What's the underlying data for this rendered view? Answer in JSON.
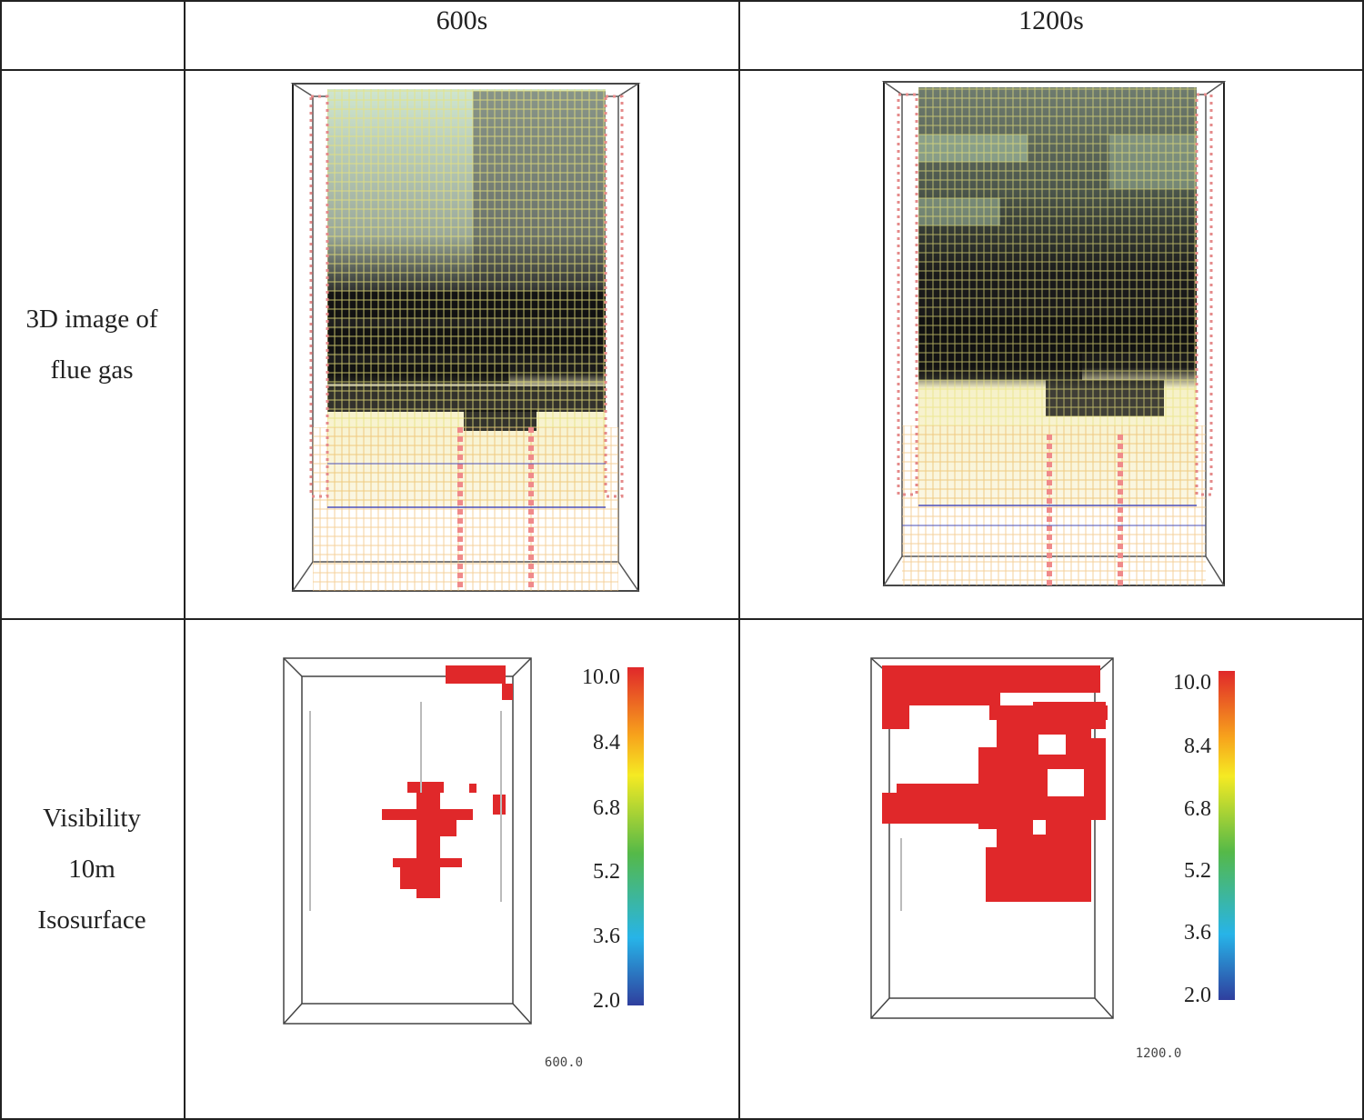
{
  "headers": {
    "empty": "",
    "col1": "600s",
    "col2": "1200s"
  },
  "rows": [
    {
      "label_line1": "3D image of",
      "label_line2": "flue gas"
    },
    {
      "label_line1": "Visibility",
      "label_line2": "10m",
      "label_line3": "Isosurface"
    }
  ],
  "colorbar_ticks": [
    "10.0",
    "8.4",
    "6.8",
    "5.2",
    "3.6",
    "2.0"
  ],
  "time_stamps": {
    "t600": "600.0",
    "t1200": "1200.0"
  },
  "colors": {
    "border": "#222222",
    "iso_red": "#e0282a",
    "smoke": "#1a1a1a",
    "grid_yellow": "#e8e27a",
    "grid_green": "#9fd28a"
  }
}
